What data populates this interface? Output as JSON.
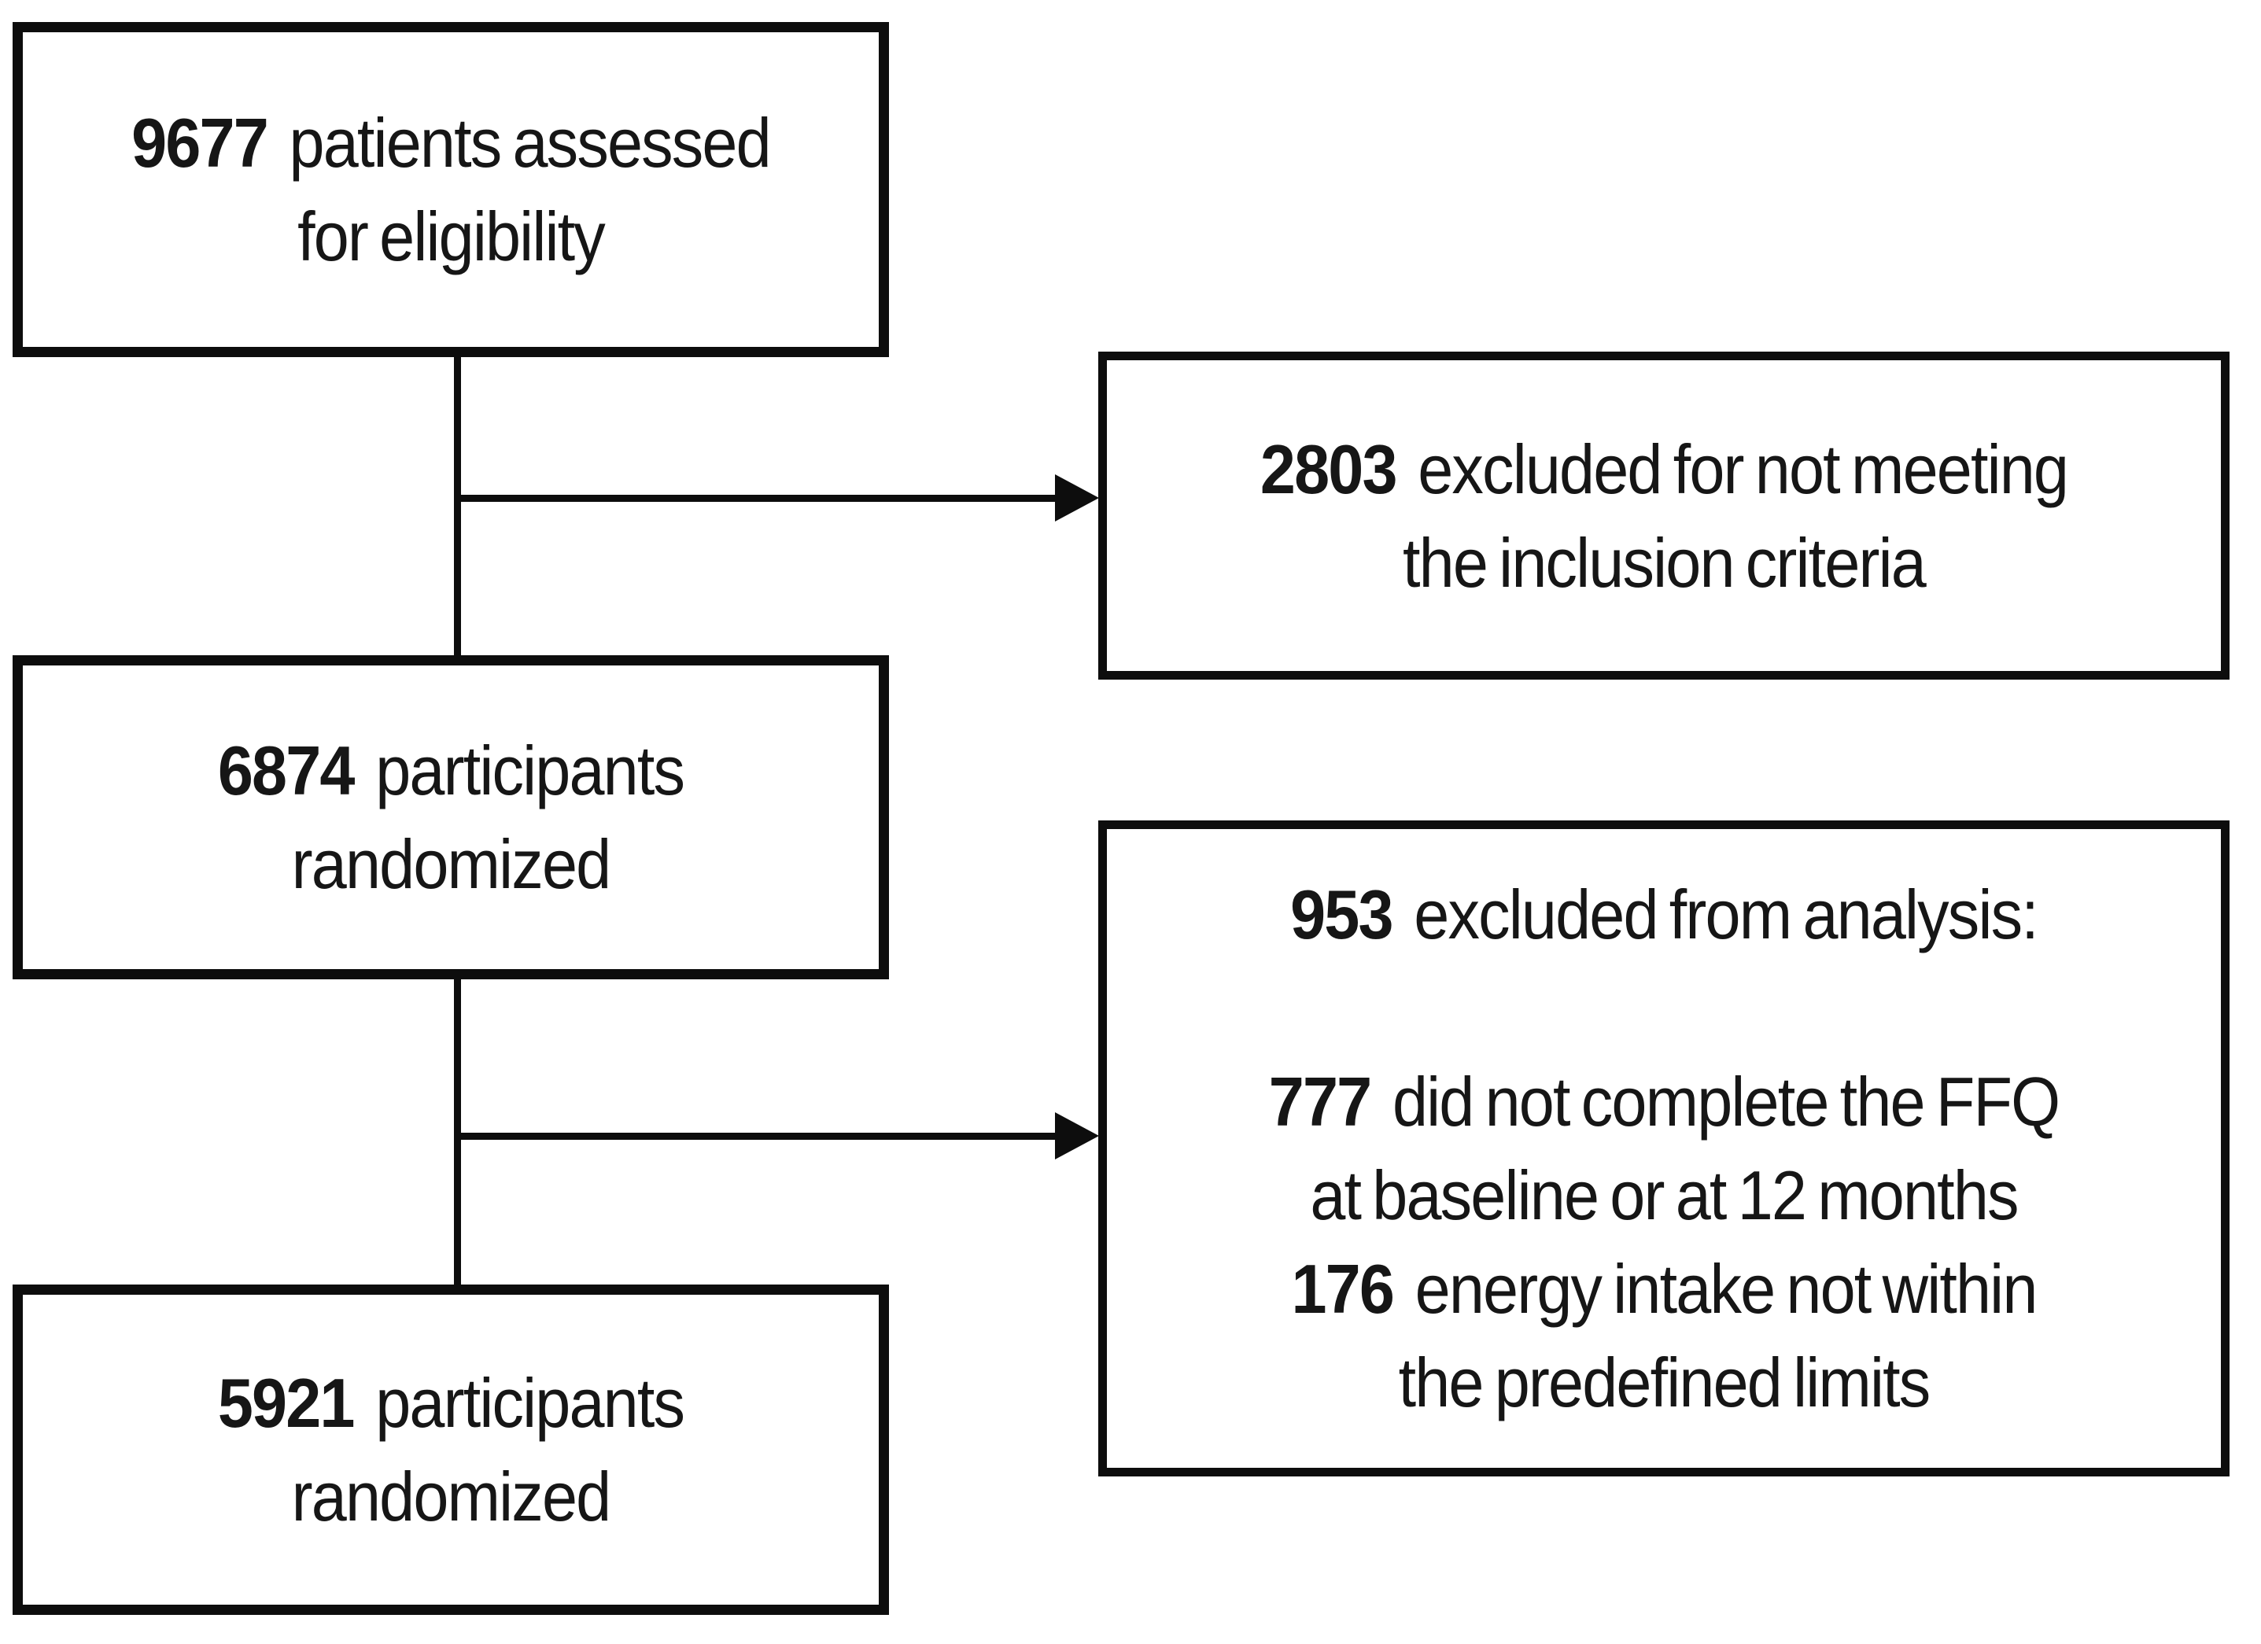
{
  "diagram": {
    "type": "participant-flow-chart",
    "colors": {
      "background": "#ffffff",
      "box_border": "#0d0d0d",
      "text": "#161616",
      "connector": "#0d0d0d"
    },
    "boxes": {
      "assessed": {
        "count": "9677",
        "line1": "patients assessed",
        "line2": "for eligibility"
      },
      "excluded_inclusion": {
        "count": "2803",
        "line1": "excluded for not meeting",
        "line2": "the inclusion criteria"
      },
      "randomized_mid": {
        "count": "6874",
        "line1": "participants",
        "line2": "randomized"
      },
      "excluded_analysis": {
        "header_count": "953",
        "header_text": "excluded from analysis:",
        "reasons": [
          {
            "count": "777",
            "line1": "did not complete the FFQ",
            "line2": "at baseline or at 12 months"
          },
          {
            "count": "176",
            "line1": "energy intake not within",
            "line2": "the predefined limits"
          }
        ]
      },
      "randomized_final": {
        "count": "5921",
        "line1": "participants",
        "line2": "randomized"
      }
    },
    "edges": [
      {
        "from": "assessed",
        "to": "randomized_mid",
        "style": "plain-line"
      },
      {
        "from": "assessed",
        "to": "excluded_inclusion",
        "style": "arrow"
      },
      {
        "from": "randomized_mid",
        "to": "randomized_final",
        "style": "plain-line"
      },
      {
        "from": "randomized_mid",
        "to": "excluded_analysis",
        "style": "arrow"
      }
    ]
  }
}
